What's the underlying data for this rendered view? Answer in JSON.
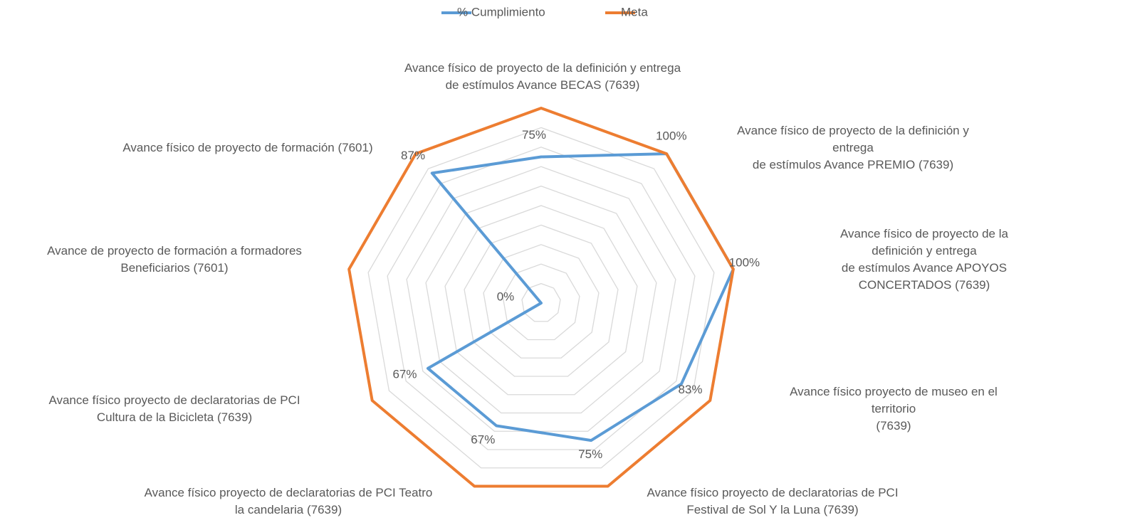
{
  "chart_data": {
    "type": "radar",
    "categories": [
      "Avance  físico de proyecto de la definición y entrega\nde estímulos Avance BECAS (7639)",
      "Avance  físico de proyecto de la definición y entrega\nde estímulos Avance PREMIO (7639)",
      "Avance  físico de proyecto de la definición y entrega\nde estímulos Avance APOYOS CONCERTADOS (7639)",
      "Avance  físico  proyecto de  museo en el territorio\n(7639)",
      "Avance físico proyecto de declaratorias de PCI\nFestival de Sol Y la Luna (7639)",
      "Avance físico proyecto de declaratorias de PCI Teatro\nla candelaria (7639)",
      "Avance físico proyecto de declaratorias de PCI\nCultura de la Bicicleta (7639)",
      "Avance de proyecto de formación a formadores\nBeneficiarios (7601)",
      "Avance físico de proyecto de formación (7601)"
    ],
    "series": [
      {
        "name": "% Cumplimiento",
        "color": "#5b9bd5",
        "values": [
          75,
          100,
          100,
          83,
          75,
          67,
          67,
          0,
          87
        ],
        "value_labels": [
          "75%",
          "100%",
          "100%",
          "83%",
          "75%",
          "67%",
          "67%",
          "0%",
          "87%"
        ]
      },
      {
        "name": "Meta",
        "color": "#ed7d31",
        "values": [
          100,
          100,
          100,
          100,
          100,
          100,
          100,
          100,
          100
        ]
      }
    ],
    "rlim": [
      0,
      100
    ],
    "rticks": [
      0,
      10,
      20,
      30,
      40,
      50,
      60,
      70,
      80,
      90,
      100
    ],
    "grid": true,
    "legend": "top"
  }
}
